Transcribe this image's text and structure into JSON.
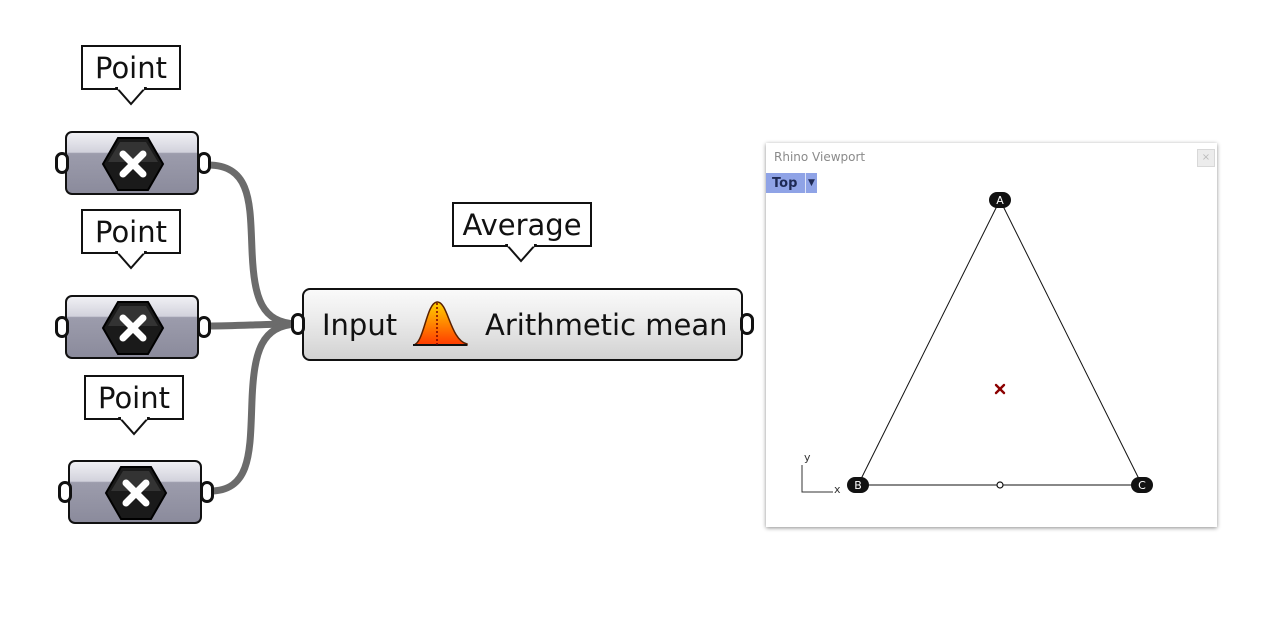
{
  "canvas": {
    "wire_color": "#6b6b6b",
    "params": [
      {
        "label": "Point",
        "icon": "close-hexagon-icon"
      },
      {
        "label": "Point",
        "icon": "close-hexagon-icon"
      },
      {
        "label": "Point",
        "icon": "close-hexagon-icon"
      }
    ],
    "component": {
      "label": "Average",
      "input": "Input",
      "output": "Arithmetic mean",
      "icon": "bell-curve-icon",
      "icon_colors": [
        "#ffd200",
        "#ff3a00"
      ]
    }
  },
  "viewport": {
    "title": "Rhino Viewport",
    "tab": "Top",
    "axis_x": "x",
    "axis_y": "y",
    "points": [
      "A",
      "B",
      "C"
    ],
    "marker_color": "#8b0000"
  }
}
